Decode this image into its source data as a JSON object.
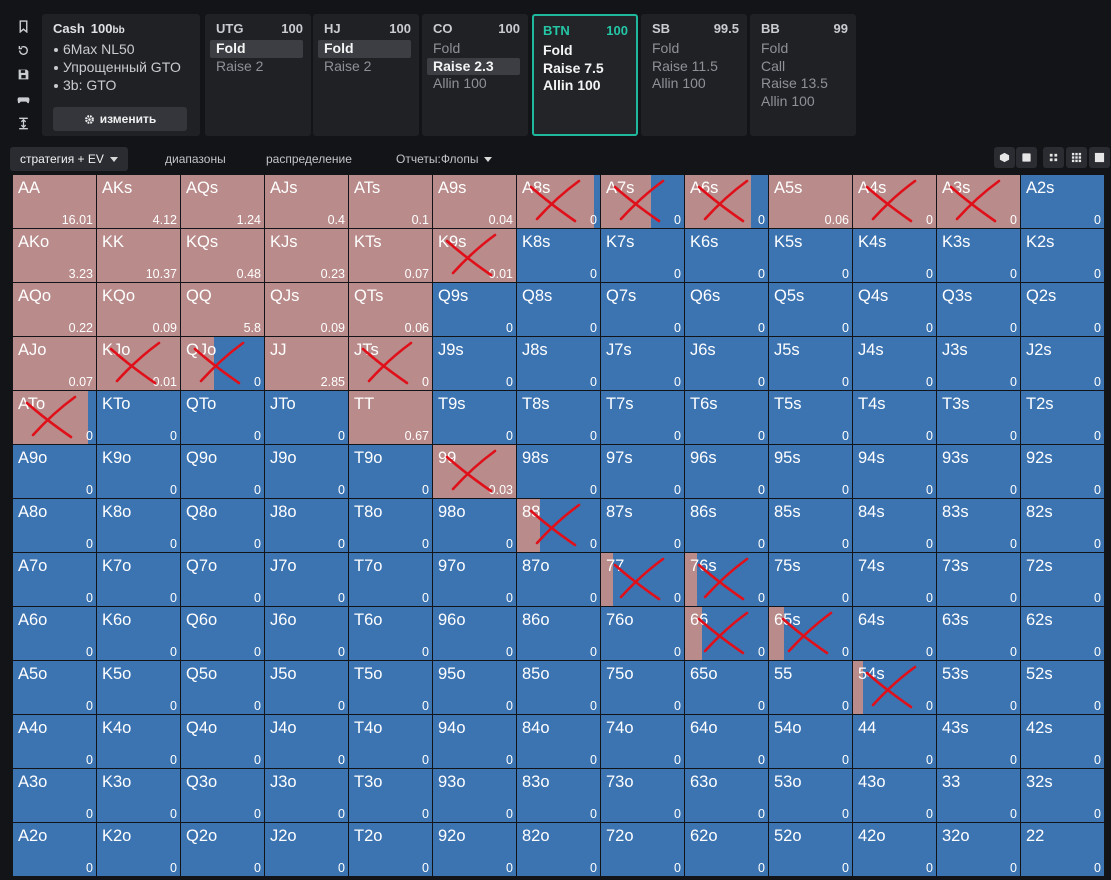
{
  "info": {
    "title": "Cash",
    "stack": "100",
    "stack_unit": "bb",
    "items": [
      "6Max NL50",
      "Упрощенный GTO",
      "3b: GTO"
    ],
    "edit_label": "изменить"
  },
  "sidebar_icons": [
    "bookmark-icon",
    "history-icon",
    "save-icon",
    "gamepad-icon",
    "expand-vertical-icon"
  ],
  "positions": [
    {
      "name": "UTG",
      "stack": "100",
      "actions": [
        "Fold",
        "Raise 2"
      ],
      "selected": 0
    },
    {
      "name": "HJ",
      "stack": "100",
      "actions": [
        "Fold",
        "Raise 2"
      ],
      "selected": 0
    },
    {
      "name": "CO",
      "stack": "100",
      "actions": [
        "Fold",
        "Raise 2.3",
        "Allin 100"
      ],
      "selected": 1
    },
    {
      "name": "BTN",
      "stack": "100",
      "actions": [
        "Fold",
        "Raise 7.5",
        "Allin 100"
      ],
      "selected": -1,
      "active": true
    },
    {
      "name": "SB",
      "stack": "99.5",
      "actions": [
        "Fold",
        "Raise 11.5",
        "Allin 100"
      ],
      "selected": -1
    },
    {
      "name": "BB",
      "stack": "99",
      "actions": [
        "Fold",
        "Call",
        "Raise 13.5",
        "Allin 100"
      ],
      "selected": -1
    }
  ],
  "tabs": {
    "strategy": "стратегия + EV",
    "ranges": "диапазоны",
    "distribution": "распределение",
    "reports": "Отчеты:Флопы"
  },
  "colors": {
    "fold": "#3c74b2",
    "raise": "#b98b8a",
    "accent": "#1fb89c",
    "annotation": "#e0101a"
  },
  "grid": {
    "ranks": [
      "A",
      "K",
      "Q",
      "J",
      "T",
      "9",
      "8",
      "7",
      "6",
      "5",
      "4",
      "3",
      "2"
    ],
    "ev": [
      [
        "16.01",
        "4.12",
        "1.24",
        "0.4",
        "0.1",
        "0.04",
        "0",
        "0",
        "0",
        "0.06",
        "0",
        "0",
        "0"
      ],
      [
        "3.23",
        "10.37",
        "0.48",
        "0.23",
        "0.07",
        "0.01",
        "0",
        "0",
        "0",
        "0",
        "0",
        "0",
        "0"
      ],
      [
        "0.22",
        "0.09",
        "5.8",
        "0.09",
        "0.06",
        "0",
        "0",
        "0",
        "0",
        "0",
        "0",
        "0",
        "0"
      ],
      [
        "0.07",
        "0.01",
        "0",
        "2.85",
        "0",
        "0",
        "0",
        "0",
        "0",
        "0",
        "0",
        "0",
        "0"
      ],
      [
        "0",
        "0",
        "0",
        "0",
        "0.67",
        "0",
        "0",
        "0",
        "0",
        "0",
        "0",
        "0",
        "0"
      ],
      [
        "0",
        "0",
        "0",
        "0",
        "0",
        "0.03",
        "0",
        "0",
        "0",
        "0",
        "0",
        "0",
        "0"
      ],
      [
        "0",
        "0",
        "0",
        "0",
        "0",
        "0",
        "0",
        "0",
        "0",
        "0",
        "0",
        "0",
        "0"
      ],
      [
        "0",
        "0",
        "0",
        "0",
        "0",
        "0",
        "0",
        "0",
        "0",
        "0",
        "0",
        "0",
        "0"
      ],
      [
        "0",
        "0",
        "0",
        "0",
        "0",
        "0",
        "0",
        "0",
        "0",
        "0",
        "0",
        "0",
        "0"
      ],
      [
        "0",
        "0",
        "0",
        "0",
        "0",
        "0",
        "0",
        "0",
        "0",
        "0",
        "0",
        "0",
        "0"
      ],
      [
        "0",
        "0",
        "0",
        "0",
        "0",
        "0",
        "0",
        "0",
        "0",
        "0",
        "0",
        "0",
        "0"
      ],
      [
        "0",
        "0",
        "0",
        "0",
        "0",
        "0",
        "0",
        "0",
        "0",
        "0",
        "0",
        "0",
        "0"
      ],
      [
        "0",
        "0",
        "0",
        "0",
        "0",
        "0",
        "0",
        "0",
        "0",
        "0",
        "0",
        "0",
        "0"
      ]
    ],
    "raise_freq": [
      [
        1,
        1,
        1,
        1,
        1,
        1,
        0.93,
        0.6,
        0.8,
        1,
        1,
        1,
        0
      ],
      [
        1,
        1,
        1,
        1,
        1,
        1,
        0,
        0,
        0,
        0,
        0,
        0,
        0
      ],
      [
        1,
        1,
        1,
        1,
        1,
        0,
        0,
        0,
        0,
        0,
        0,
        0,
        0
      ],
      [
        1,
        1,
        0.4,
        1,
        1,
        0,
        0,
        0,
        0,
        0,
        0,
        0,
        0
      ],
      [
        0.9,
        0,
        0,
        0,
        1,
        0,
        0,
        0,
        0,
        0,
        0,
        0,
        0
      ],
      [
        0,
        0,
        0,
        0,
        0,
        1,
        0,
        0,
        0,
        0,
        0,
        0,
        0
      ],
      [
        0,
        0,
        0,
        0,
        0,
        0,
        0.28,
        0,
        0,
        0,
        0,
        0,
        0
      ],
      [
        0,
        0,
        0,
        0,
        0,
        0,
        0,
        0.15,
        0.15,
        0,
        0,
        0,
        0
      ],
      [
        0,
        0,
        0,
        0,
        0,
        0,
        0,
        0,
        0.2,
        0.18,
        0,
        0,
        0
      ],
      [
        0,
        0,
        0,
        0,
        0,
        0,
        0,
        0,
        0,
        0,
        0.12,
        0,
        0
      ],
      [
        0,
        0,
        0,
        0,
        0,
        0,
        0,
        0,
        0,
        0,
        0,
        0,
        0
      ],
      [
        0,
        0,
        0,
        0,
        0,
        0,
        0,
        0,
        0,
        0,
        0,
        0,
        0
      ],
      [
        0,
        0,
        0,
        0,
        0,
        0,
        0,
        0,
        0,
        0,
        0,
        0,
        0
      ]
    ],
    "crossed_out": [
      "A8s",
      "A7s",
      "A6s",
      "A4s",
      "A3s",
      "K9s",
      "KJo",
      "QJo",
      "JTs",
      "ATo",
      "99",
      "88",
      "77",
      "76s",
      "66",
      "65s",
      "54s"
    ]
  }
}
